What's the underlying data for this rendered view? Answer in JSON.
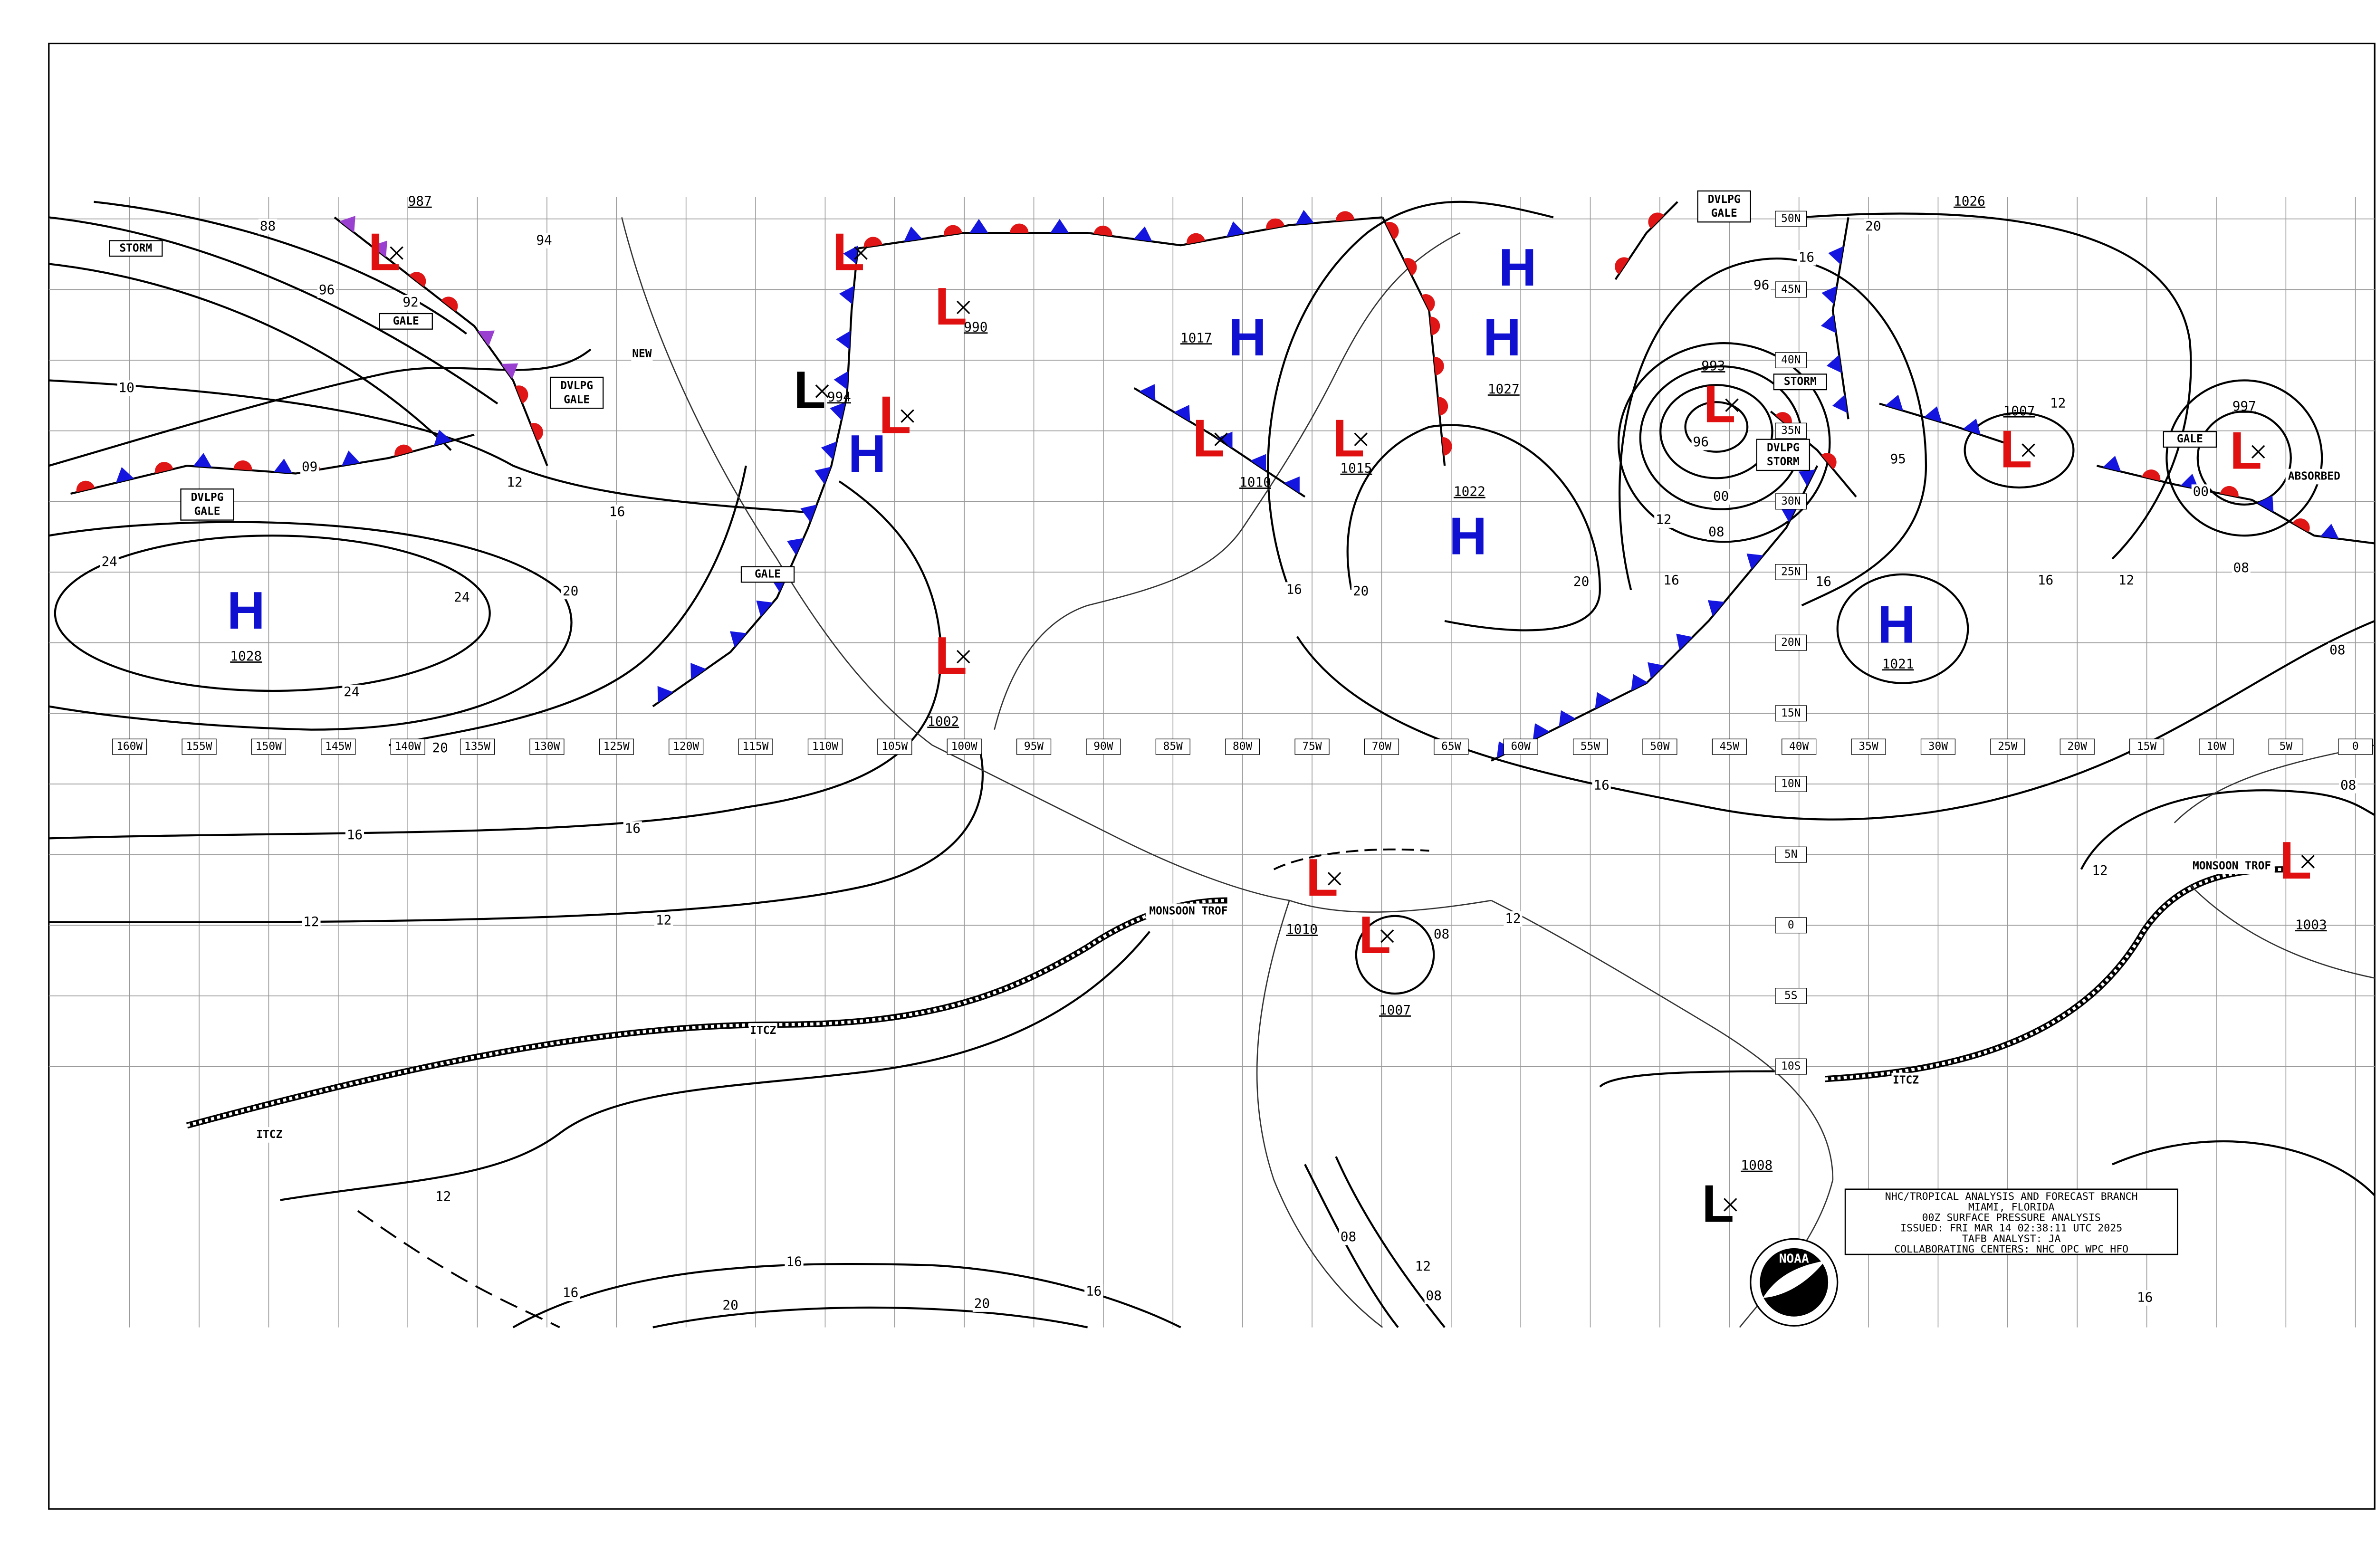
{
  "longitude_labels": [
    "160W",
    "155W",
    "150W",
    "145W",
    "140W",
    "135W",
    "130W",
    "125W",
    "120W",
    "115W",
    "110W",
    "105W",
    "100W",
    "95W",
    "90W",
    "85W",
    "80W",
    "75W",
    "70W",
    "65W",
    "60W",
    "55W",
    "50W",
    "45W",
    "40W",
    "35W",
    "30W",
    "25W",
    "20W",
    "15W",
    "10W",
    "5W",
    "0"
  ],
  "latitude_labels": [
    "50N",
    "45N",
    "40N",
    "35N",
    "30N",
    "25N",
    "20N",
    "15N",
    "10N",
    "5N",
    "0",
    "5S",
    "10S"
  ],
  "pressure_centers": [
    {
      "symbol": "L",
      "value": "987"
    },
    {
      "symbol": "L"
    },
    {
      "symbol": "L",
      "value": "990"
    },
    {
      "symbol": "L",
      "value": "994"
    },
    {
      "symbol": "L"
    },
    {
      "symbol": "H"
    },
    {
      "symbol": "H",
      "value": "1017"
    },
    {
      "symbol": "H"
    },
    {
      "symbol": "H",
      "value": "1027"
    },
    {
      "symbol": "L",
      "value": "1010"
    },
    {
      "symbol": "L",
      "value": "1015"
    },
    {
      "symbol": "H",
      "value": "1022"
    },
    {
      "symbol": "L",
      "value": "993"
    },
    {
      "symbol": "L",
      "value": "1007"
    },
    {
      "symbol": "H",
      "value": "1021"
    },
    {
      "symbol": "L",
      "value": "997"
    },
    {
      "symbol": "H",
      "value": "1028"
    },
    {
      "symbol": "L",
      "value": "1002"
    },
    {
      "symbol": "L",
      "value": "1010"
    },
    {
      "symbol": "L",
      "value": "1007"
    },
    {
      "symbol": "L",
      "value": "1008"
    },
    {
      "symbol": "L",
      "value": "1003"
    }
  ],
  "high_label": "1026",
  "isobar_labels": [
    "88",
    "96",
    "92",
    "10",
    "09",
    "12",
    "16",
    "94",
    "24",
    "24",
    "24",
    "20",
    "20",
    "16",
    "16",
    "12",
    "12",
    "12",
    "16",
    "16",
    "20",
    "20",
    "16",
    "16",
    "20",
    "20",
    "16",
    "12",
    "08",
    "00",
    "96",
    "96",
    "16",
    "20",
    "95",
    "12",
    "16",
    "16",
    "16",
    "12",
    "08",
    "00",
    "08",
    "08",
    "12",
    "16",
    "08",
    "12",
    "08",
    "08",
    "12"
  ],
  "feature_labels": [
    "STORM",
    "GALE",
    "DVLPG GALE",
    "DVLPG GALE",
    "NEW",
    "GALE",
    "DVLPG GALE",
    "STORM",
    "DVLPG STORM",
    "GALE",
    "ABSORBED",
    "MONSOON TROF",
    "MONSOON TROF",
    "ITCZ",
    "ITCZ",
    "ITCZ"
  ],
  "title_block": {
    "lines": [
      "NHC/TROPICAL ANALYSIS AND FORECAST BRANCH",
      "MIAMI, FLORIDA",
      "00Z SURFACE PRESSURE ANALYSIS",
      "ISSUED: FRI MAR 14 02:38:11 UTC 2025",
      "TAFB ANALYST: JA",
      "COLLABORATING CENTERS: NHC OPC WPC HFO"
    ]
  },
  "logo": "NOAA"
}
